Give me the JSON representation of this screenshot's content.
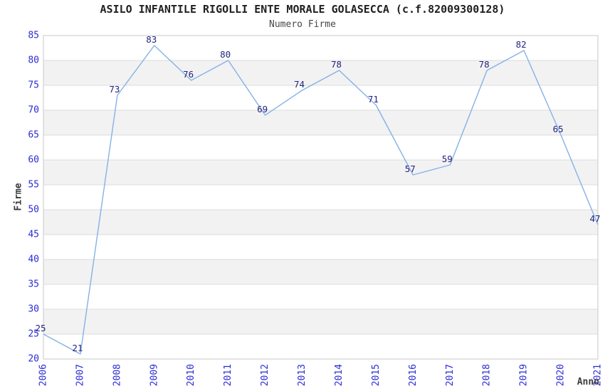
{
  "chart_data": {
    "type": "line",
    "title": "ASILO INFANTILE RIGOLLI ENTE MORALE GOLASECCA (c.f.82009300128)",
    "subtitle": "Numero Firme",
    "xlabel": "Anno",
    "ylabel": "Firme",
    "categories": [
      "2006",
      "2007",
      "2008",
      "2009",
      "2010",
      "2011",
      "2012",
      "2013",
      "2014",
      "2015",
      "2016",
      "2017",
      "2018",
      "2019",
      "2020",
      "2021"
    ],
    "values": [
      25,
      21,
      73,
      83,
      76,
      80,
      69,
      74,
      78,
      71,
      57,
      59,
      78,
      82,
      65,
      47
    ],
    "ylim": [
      20,
      85
    ],
    "ytick_step": 5,
    "grid": true,
    "background_bands": "alternating gray stripes every 5 units (25-30, 35-40, 45-50, 55-60, 65-70, 75-80)",
    "legend_position": "none",
    "point_markers": false,
    "data_labels_shown": true,
    "colors": {
      "line": "#85b1e6",
      "tick_label": "#2b2bd6",
      "data_label": "#24247e",
      "band_fill": "#f2f2f2",
      "gridline": "#dcdcdc",
      "plot_border": "#c9c9c9",
      "title": "#1f1f1f",
      "subtitle": "#474747",
      "axis_title": "#3a3a3a",
      "plot_background": "#ffffff"
    }
  }
}
